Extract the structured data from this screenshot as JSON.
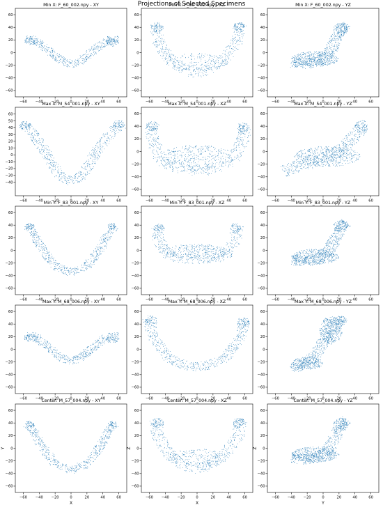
{
  "title": "Projections of Selected Specimens",
  "colors": {
    "points": "#1f77b4",
    "axes": "#000000",
    "background": "#ffffff"
  },
  "chart_data": [
    {
      "type": "scatter",
      "title": "Min X: F_60_002.npy - XY",
      "shape": "flat-v",
      "xlabel": "",
      "ylabel": "",
      "xlim": [
        -70,
        70
      ],
      "ylim": [
        -70,
        70
      ],
      "xticks": [
        -60,
        -40,
        -20,
        0,
        20,
        40,
        60
      ],
      "yticks": [
        -60,
        -40,
        -20,
        0,
        20,
        40,
        60
      ],
      "grid": false
    },
    {
      "type": "scatter",
      "title": "Min X: F_60_002.npy - XZ",
      "shape": "bowl",
      "xlabel": "",
      "ylabel": "",
      "xlim": [
        -70,
        70
      ],
      "ylim": [
        -70,
        70
      ],
      "xticks": [
        -60,
        -40,
        -20,
        0,
        20,
        40,
        60
      ],
      "yticks": [
        -60,
        -40,
        -20,
        0,
        20,
        40,
        60
      ],
      "grid": false
    },
    {
      "type": "scatter",
      "title": "Min X: F_60_002.npy - YZ",
      "shape": "side",
      "xlabel": "",
      "ylabel": "",
      "xlim": [
        -70,
        70
      ],
      "ylim": [
        -70,
        70
      ],
      "xticks": [
        -60,
        -40,
        -20,
        0,
        20,
        40,
        60
      ],
      "yticks": [
        -60,
        -40,
        -20,
        0,
        20,
        40,
        60
      ],
      "grid": false
    },
    {
      "type": "scatter",
      "title": "Max X: M_54_001.npy - XY",
      "shape": "v",
      "xlabel": "",
      "ylabel": "",
      "xlim": [
        -70,
        70
      ],
      "ylim": [
        -60,
        70
      ],
      "xticks": [
        -60,
        -40,
        -20,
        0,
        20,
        40,
        60
      ],
      "yticks": [
        -40,
        -30,
        -20,
        -10,
        0,
        10,
        20,
        30,
        40,
        50,
        60
      ],
      "grid": false
    },
    {
      "type": "scatter",
      "title": "Max X: M_54_001.npy - XZ",
      "shape": "bowl-wide",
      "xlabel": "",
      "ylabel": "",
      "xlim": [
        -70,
        70
      ],
      "ylim": [
        -70,
        70
      ],
      "xticks": [
        -60,
        -40,
        -20,
        0,
        20,
        40,
        60
      ],
      "yticks": [
        -60,
        -40,
        -20,
        0,
        20,
        40,
        60
      ],
      "grid": false
    },
    {
      "type": "scatter",
      "title": "Max X: M_54_001.npy - YZ",
      "shape": "side-long",
      "xlabel": "",
      "ylabel": "",
      "xlim": [
        -70,
        70
      ],
      "ylim": [
        -70,
        70
      ],
      "xticks": [
        -60,
        -40,
        -20,
        0,
        20,
        40,
        60
      ],
      "yticks": [
        -60,
        -40,
        -20,
        0,
        20,
        40,
        60
      ],
      "grid": false
    },
    {
      "type": "scatter",
      "title": "Min Y: F_83_001.npy - XY",
      "shape": "u",
      "xlabel": "",
      "ylabel": "",
      "xlim": [
        -70,
        70
      ],
      "ylim": [
        -70,
        70
      ],
      "xticks": [
        -60,
        -40,
        -20,
        0,
        20,
        40,
        60
      ],
      "yticks": [
        -60,
        -40,
        -20,
        0,
        20,
        40,
        60
      ],
      "grid": false
    },
    {
      "type": "scatter",
      "title": "Min Y: F_83_001.npy - XZ",
      "shape": "bowl-short",
      "xlabel": "",
      "ylabel": "",
      "xlim": [
        -70,
        70
      ],
      "ylim": [
        -70,
        70
      ],
      "xticks": [
        -60,
        -40,
        -20,
        0,
        20,
        40,
        60
      ],
      "yticks": [
        -60,
        -40,
        -20,
        0,
        20,
        40,
        60
      ],
      "grid": false
    },
    {
      "type": "scatter",
      "title": "Min Y: F_83_001.npy - YZ",
      "shape": "side",
      "xlabel": "",
      "ylabel": "",
      "xlim": [
        -70,
        70
      ],
      "ylim": [
        -70,
        70
      ],
      "xticks": [
        -60,
        -40,
        -20,
        0,
        20,
        40,
        60
      ],
      "yticks": [
        -60,
        -40,
        -20,
        0,
        20,
        40,
        60
      ],
      "grid": false
    },
    {
      "type": "scatter",
      "title": "Max Y: M_68_006.npy - XY",
      "shape": "flat-v",
      "xlabel": "",
      "ylabel": "",
      "xlim": [
        -70,
        70
      ],
      "ylim": [
        -70,
        70
      ],
      "xticks": [
        -60,
        -40,
        -20,
        0,
        20,
        40,
        60
      ],
      "yticks": [
        -60,
        -40,
        -20,
        0,
        20,
        40,
        60
      ],
      "grid": false
    },
    {
      "type": "scatter",
      "title": "Max Y: M_68_006.npy - XZ",
      "shape": "bowl-tall",
      "xlabel": "",
      "ylabel": "",
      "xlim": [
        -70,
        70
      ],
      "ylim": [
        -70,
        70
      ],
      "xticks": [
        -60,
        -40,
        -20,
        0,
        20,
        40,
        60
      ],
      "yticks": [
        -60,
        -40,
        -20,
        0,
        20,
        40,
        60
      ],
      "grid": false
    },
    {
      "type": "scatter",
      "title": "Max Y: M_68_006.npy - YZ",
      "shape": "side-steep",
      "xlabel": "",
      "ylabel": "",
      "xlim": [
        -70,
        70
      ],
      "ylim": [
        -70,
        70
      ],
      "xticks": [
        -60,
        -40,
        -20,
        0,
        20,
        40,
        60
      ],
      "yticks": [
        -60,
        -40,
        -20,
        0,
        20,
        40,
        60
      ],
      "grid": false
    },
    {
      "type": "scatter",
      "title": "Center: M_57_004.npy - XY",
      "shape": "u",
      "xlabel": "X",
      "ylabel": "Y",
      "xlim": [
        -70,
        70
      ],
      "ylim": [
        -70,
        70
      ],
      "xticks": [
        -60,
        -40,
        -20,
        0,
        20,
        40,
        60
      ],
      "yticks": [
        -60,
        -40,
        -20,
        0,
        20,
        40,
        60
      ],
      "grid": false
    },
    {
      "type": "scatter",
      "title": "Center: M_57_004.npy - XZ",
      "shape": "bowl",
      "xlabel": "X",
      "ylabel": "Z",
      "xlim": [
        -70,
        70
      ],
      "ylim": [
        -70,
        70
      ],
      "xticks": [
        -60,
        -40,
        -20,
        0,
        20,
        40,
        60
      ],
      "yticks": [
        -60,
        -40,
        -20,
        0,
        20,
        40,
        60
      ],
      "grid": false
    },
    {
      "type": "scatter",
      "title": "Center: M_57_004.npy - YZ",
      "shape": "side",
      "xlabel": "Y",
      "ylabel": "Z",
      "xlim": [
        -70,
        70
      ],
      "ylim": [
        -70,
        70
      ],
      "xticks": [
        -60,
        -40,
        -20,
        0,
        20,
        40,
        60
      ],
      "yticks": [
        -60,
        -40,
        -20,
        0,
        20,
        40,
        60
      ],
      "grid": false
    }
  ]
}
